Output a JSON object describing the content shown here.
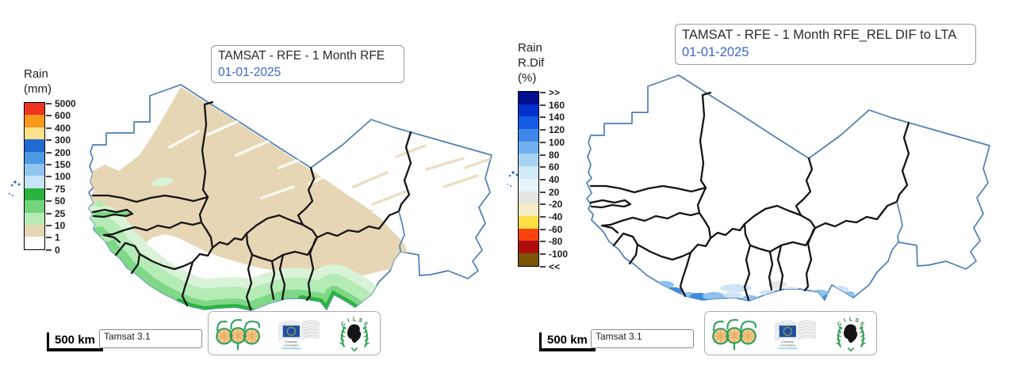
{
  "colors": {
    "date_blue": "#3a66cc",
    "title_text": "#2b2b2b",
    "box_border": "#9b9b9b",
    "map_outline_blue": "#4a7fb5",
    "map_border_black": "#141414"
  },
  "left_panel": {
    "title": "TAMSAT - RFE - 1 Month RFE",
    "date": "01-01-2025",
    "scale_label": "500 km",
    "source_label": "Tamsat 3.1",
    "legend": {
      "title_lines": [
        "Rain",
        "(mm)"
      ],
      "boundary_labels": [
        "5000",
        "600",
        "400",
        "300",
        "200",
        "150",
        "100",
        "75",
        "50",
        "25",
        "10",
        "1",
        "0"
      ],
      "band_colors": [
        "#ee3420",
        "#f8991d",
        "#fbe18a",
        "#1f6ad2",
        "#4d9ae4",
        "#8fc6ef",
        "#c6e3f7",
        "#2ab33c",
        "#74d47c",
        "#b5ecb6",
        "#e7d6b4",
        "#ffffff"
      ]
    },
    "map_colors": {
      "tan": "#e7d6b4",
      "green_pale": "#d9f3d9",
      "green_light": "#b5ecb6",
      "green_mid": "#7ed886",
      "green_dark": "#2ab33c"
    }
  },
  "right_panel": {
    "title": "TAMSAT - RFE - 1 Month RFE_REL DIF to LTA",
    "date": "01-01-2025",
    "scale_label": "500 km",
    "source_label": "Tamsat 3.1",
    "legend": {
      "title_lines": [
        "Rain",
        "R.Dif",
        "(%)"
      ],
      "boundary_labels": [
        ">>",
        "160",
        "140",
        "120",
        "100",
        "80",
        "60",
        "40",
        "20",
        "-20",
        "-40",
        "-60",
        "-80",
        "-100",
        "<<"
      ],
      "band_colors": [
        "#000e8f",
        "#0031cf",
        "#135ce4",
        "#3f87e8",
        "#74b0ef",
        "#a7d4f4",
        "#cfeaf8",
        "#e8f5fb",
        "#e4e4e0",
        "#f5ecc6",
        "#ffdf45",
        "#f8430e",
        "#ab0c08",
        "#7d5605"
      ]
    },
    "map_colors": {
      "blue_strong": "#3f8cdc",
      "blue_mid": "#8ec2f0",
      "blue_light": "#cfe5f7",
      "gray": "#e5e7e4"
    }
  },
  "logos": {
    "eu": {
      "line1": "European",
      "line2": "Commission"
    },
    "cilss_text": "CILSS"
  }
}
